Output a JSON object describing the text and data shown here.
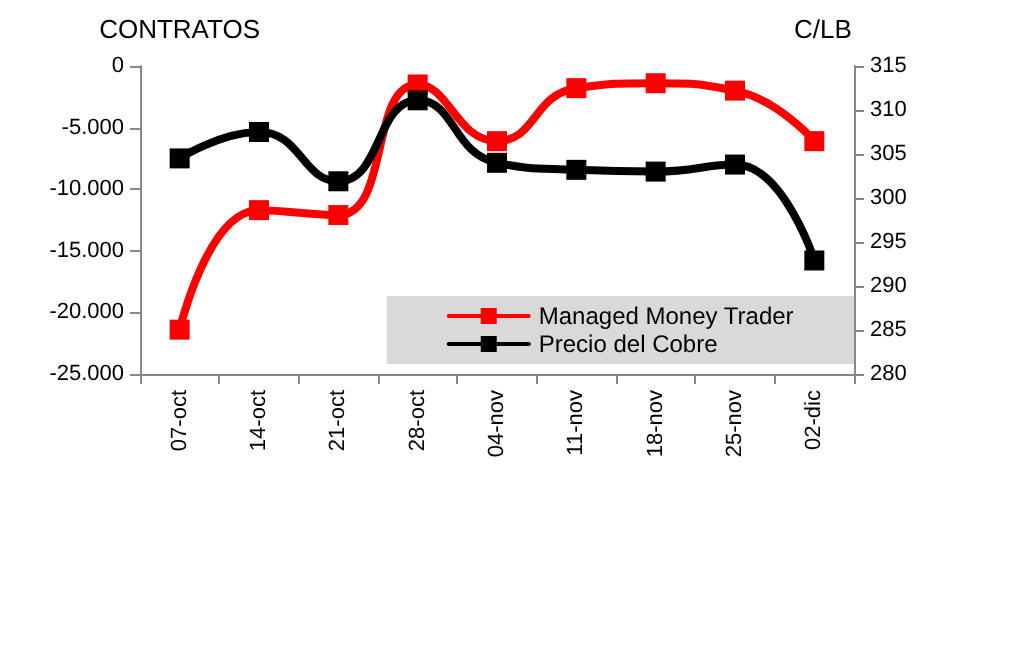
{
  "chart_data": {
    "type": "line",
    "ylabel": "CONTRATOS",
    "y2label": "C/LB",
    "categories": [
      "07-oct",
      "14-oct",
      "21-oct",
      "28-oct",
      "04-nov",
      "11-nov",
      "18-nov",
      "25-nov",
      "02-dic"
    ],
    "series": [
      {
        "name": "Managed Money Trader",
        "color": "#ff0000",
        "values": [
          -21400,
          -11700,
          -12100,
          -1500,
          -6100,
          -1800,
          -1400,
          -2000,
          -6100
        ]
      },
      {
        "name": "Precio del Cobre",
        "color": "#000000",
        "axis": "y2",
        "values": [
          304.5,
          307.5,
          301.9,
          311.1,
          304.0,
          303.2,
          303.0,
          303.8,
          292.9
        ]
      }
    ],
    "ylim": [
      -25000,
      0
    ],
    "yticks": [
      {
        "value": -25000,
        "label": "-25.000"
      },
      {
        "value": -20000,
        "label": "-20.000"
      },
      {
        "value": -15000,
        "label": "-15.000"
      },
      {
        "value": -10000,
        "label": "-10.000"
      },
      {
        "value": -5000,
        "label": "-5.000"
      },
      0
    ],
    "y2lim": [
      280,
      315
    ],
    "y2ticks": [
      280,
      285,
      290,
      295,
      300,
      305,
      310,
      315
    ],
    "legend": "bottom right",
    "marker": "square",
    "line_style": "solid",
    "grid": false
  }
}
